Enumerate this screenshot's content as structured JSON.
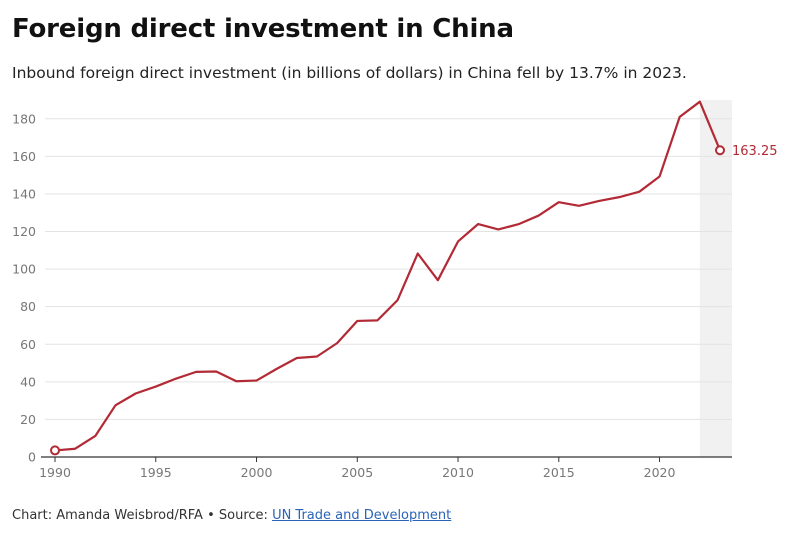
{
  "header": {
    "title": "Foreign direct investment in China",
    "subtitle": "Inbound foreign direct investment (in billions of dollars) in China fell by 13.7% in 2023."
  },
  "footer": {
    "chart_prefix": "Chart: ",
    "chart_author": "Amanda Weisbrod/RFA",
    "separator": " • ",
    "source_prefix": "Source: ",
    "source_name": "UN Trade and Development"
  },
  "colors": {
    "line": "#b22a35",
    "grid": "#e3e3e3",
    "axis": "#333333",
    "highlight_band": "#f1f1f1"
  },
  "chart_data": {
    "type": "line",
    "title": "Foreign direct investment in China",
    "subtitle": "Inbound foreign direct investment (in billions of dollars) in China fell by 13.7% in 2023.",
    "xlabel": "",
    "ylabel": "",
    "xlim": [
      1990,
      2023
    ],
    "ylim": [
      0,
      190
    ],
    "x_ticks": [
      1990,
      1995,
      2000,
      2005,
      2010,
      2015,
      2020
    ],
    "y_ticks": [
      0,
      20,
      40,
      60,
      80,
      100,
      120,
      140,
      160,
      180
    ],
    "grid": "horizontal",
    "highlight_range": [
      2022,
      2023
    ],
    "series": [
      {
        "x": [
          1990,
          1991,
          1992,
          1993,
          1994,
          1995,
          1996,
          1997,
          1998,
          1999,
          2000,
          2001,
          2002,
          2003,
          2004,
          2005,
          2006,
          2007,
          2008,
          2009,
          2010,
          2011,
          2012,
          2013,
          2014,
          2015,
          2016,
          2017,
          2018,
          2019,
          2020,
          2021,
          2022,
          2023
        ],
        "values": [
          3.5,
          4.4,
          11.2,
          27.5,
          33.8,
          37.5,
          41.7,
          45.3,
          45.5,
          40.3,
          40.7,
          46.9,
          52.7,
          53.5,
          60.6,
          72.4,
          72.7,
          83.5,
          108.3,
          94.1,
          114.7,
          124.0,
          121.1,
          123.9,
          128.5,
          135.6,
          133.7,
          136.3,
          138.3,
          141.2,
          149.3,
          181.0,
          189.1,
          163.25
        ]
      }
    ],
    "end_label": "163.25"
  }
}
